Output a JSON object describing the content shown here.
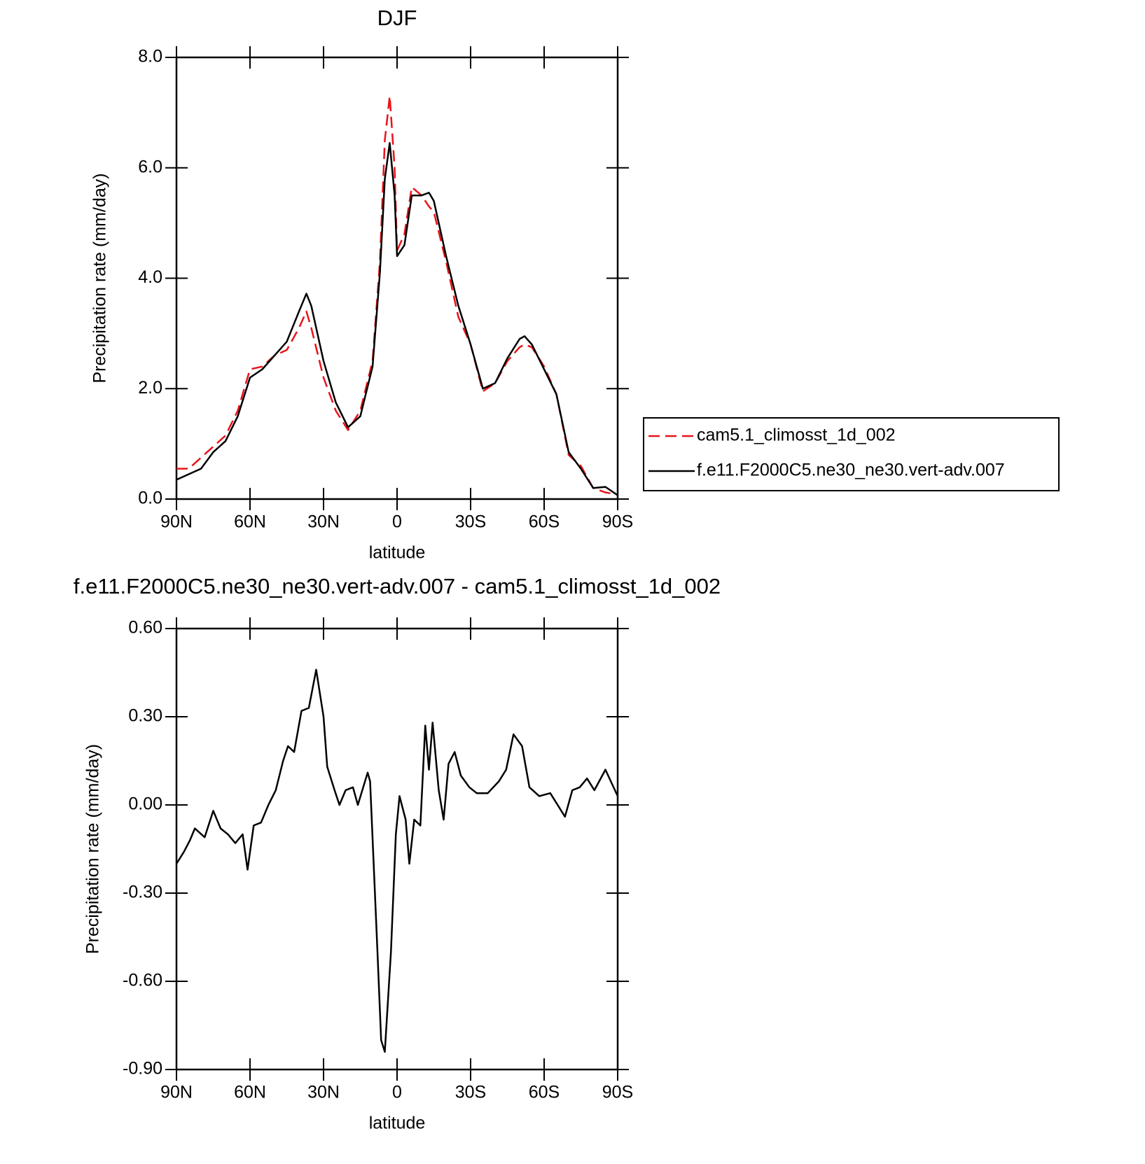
{
  "chart_data": [
    {
      "type": "line",
      "title": "DJF",
      "xlabel": "latitude",
      "ylabel": "Precipitation rate (mm/day)",
      "x": [
        90,
        85,
        80,
        75,
        70,
        65,
        60,
        55,
        50,
        45,
        40,
        37,
        35,
        30,
        25,
        20,
        15,
        10,
        7,
        5,
        3,
        1,
        0,
        -3,
        -6,
        -10,
        -13,
        -15,
        -20,
        -25,
        -30,
        -35,
        -40,
        -45,
        -50,
        -52,
        -55,
        -60,
        -65,
        -70,
        -75,
        -80,
        -85,
        -90
      ],
      "series": [
        {
          "name": "cam5.1_climosst_1d_002",
          "color": "#e8141a",
          "line_style": "dashed",
          "values": [
            0.55,
            0.55,
            0.75,
            0.95,
            1.15,
            1.6,
            2.35,
            2.4,
            2.6,
            2.7,
            3.1,
            3.4,
            3.1,
            2.2,
            1.6,
            1.25,
            1.6,
            2.5,
            4.3,
            6.5,
            7.3,
            6.0,
            4.5,
            4.8,
            5.65,
            5.5,
            5.3,
            5.2,
            4.3,
            3.3,
            2.8,
            1.95,
            2.1,
            2.5,
            2.75,
            2.8,
            2.75,
            2.4,
            1.9,
            0.8,
            0.6,
            0.2,
            0.12,
            0.08
          ]
        },
        {
          "name": "f.e11.F2000C5.ne30_ne30.vert-adv.007",
          "color": "#000000",
          "line_style": "solid",
          "values": [
            0.35,
            0.45,
            0.55,
            0.85,
            1.05,
            1.5,
            2.2,
            2.35,
            2.6,
            2.85,
            3.4,
            3.72,
            3.5,
            2.5,
            1.75,
            1.3,
            1.5,
            2.4,
            4.1,
            5.8,
            6.45,
            5.5,
            4.4,
            4.6,
            5.5,
            5.5,
            5.55,
            5.4,
            4.4,
            3.5,
            2.8,
            2.0,
            2.1,
            2.55,
            2.9,
            2.95,
            2.8,
            2.35,
            1.9,
            0.85,
            0.55,
            0.2,
            0.22,
            0.07
          ]
        }
      ],
      "xlim": [
        90,
        -90
      ],
      "xticks": [
        {
          "value": 90,
          "label": "90N"
        },
        {
          "value": 60,
          "label": "60N"
        },
        {
          "value": 30,
          "label": "30N"
        },
        0,
        {
          "value": -30,
          "label": "30S"
        },
        {
          "value": -60,
          "label": "60S"
        },
        {
          "value": -90,
          "label": "90S"
        }
      ],
      "ylim": [
        0,
        8
      ],
      "yticks": [
        {
          "value": 0,
          "label": "0.0"
        },
        {
          "value": 2,
          "label": "2.0"
        },
        {
          "value": 4,
          "label": "4.0"
        },
        {
          "value": 6,
          "label": "6.0"
        },
        {
          "value": 8,
          "label": "8.0"
        }
      ],
      "legend": "right"
    },
    {
      "type": "line",
      "title": "f.e11.F2000C5.ne30_ne30.vert-adv.007 - cam5.1_climosst_1d_002",
      "xlabel": "latitude",
      "ylabel": "Precipitation rate (mm/day)",
      "x": [
        90,
        87,
        84.5,
        82.5,
        78.5,
        75,
        72,
        69,
        66,
        63,
        61,
        58.5,
        55.5,
        52.5,
        49.5,
        46.5,
        44.5,
        42,
        39,
        36,
        33,
        30,
        28.5,
        25.5,
        23.5,
        21,
        18,
        16,
        12,
        11,
        8,
        6.5,
        5,
        2.5,
        0.5,
        -1,
        -3.5,
        -5,
        -7,
        -9.5,
        -11.5,
        -13,
        -14.5,
        -17,
        -19,
        -21,
        -23.5,
        -26,
        -29.5,
        -32.5,
        -37,
        -41.5,
        -44.5,
        -47.5,
        -51,
        -54,
        -58,
        -62.5,
        -65.5,
        -68.5,
        -71.5,
        -74.5,
        -77.5,
        -80.5,
        -85,
        -90
      ],
      "values": [
        -0.2,
        -0.16,
        -0.12,
        -0.08,
        -0.11,
        -0.02,
        -0.08,
        -0.1,
        -0.13,
        -0.1,
        -0.22,
        -0.07,
        -0.06,
        0.0,
        0.05,
        0.15,
        0.2,
        0.18,
        0.32,
        0.33,
        0.46,
        0.3,
        0.13,
        0.05,
        0.0,
        0.05,
        0.06,
        0.0,
        0.11,
        0.08,
        -0.5,
        -0.8,
        -0.84,
        -0.5,
        -0.1,
        0.03,
        -0.05,
        -0.2,
        -0.05,
        -0.07,
        0.27,
        0.12,
        0.28,
        0.05,
        -0.05,
        0.14,
        0.18,
        0.1,
        0.06,
        0.04,
        0.04,
        0.08,
        0.12,
        0.24,
        0.2,
        0.06,
        0.03,
        0.04,
        0.0,
        -0.04,
        0.05,
        0.06,
        0.09,
        0.05,
        0.12,
        0.03
      ],
      "color": "#000000",
      "xlim": [
        90,
        -90
      ],
      "xticks": [
        {
          "value": 90,
          "label": "90N"
        },
        {
          "value": 60,
          "label": "60N"
        },
        {
          "value": 30,
          "label": "30N"
        },
        0,
        {
          "value": -30,
          "label": "30S"
        },
        {
          "value": -60,
          "label": "60S"
        },
        {
          "value": -90,
          "label": "90S"
        }
      ],
      "ylim": [
        -0.9,
        0.6
      ],
      "yticks": [
        {
          "value": -0.9,
          "label": "-0.90"
        },
        {
          "value": -0.6,
          "label": "-0.60"
        },
        {
          "value": -0.3,
          "label": "-0.30"
        },
        {
          "value": 0,
          "label": "0.00"
        },
        {
          "value": 0.3,
          "label": "0.30"
        },
        {
          "value": 0.6,
          "label": "0.60"
        }
      ]
    }
  ]
}
